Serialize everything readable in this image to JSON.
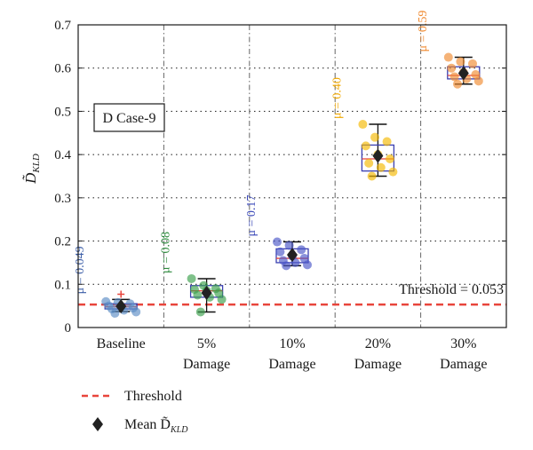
{
  "chart_data": {
    "type": "box",
    "ylabel": "D̃",
    "ylabel_sub": "KLD",
    "ylim": [
      0,
      0.7
    ],
    "yticks": [
      "0",
      "0.1",
      "0.2",
      "0.3",
      "0.4",
      "0.5",
      "0.6",
      "0.7"
    ],
    "categories": [
      {
        "line1": "Baseline",
        "line2": ""
      },
      {
        "line1": "5%",
        "line2": "Damage"
      },
      {
        "line1": "10%",
        "line2": "Damage"
      },
      {
        "line1": "20%",
        "line2": "Damage"
      },
      {
        "line1": "30%",
        "line2": "Damage"
      }
    ],
    "case_label": "D Case-9",
    "threshold": {
      "value": 0.053,
      "label": "Threshold = 0.053",
      "color": "#e8453c"
    },
    "groups": [
      {
        "color": "#5b8cc4",
        "box_color": "#3a3fb0",
        "median_color": "#e8453c",
        "mu_label": "μ = 0.049",
        "mu_color": "#3d5fa8",
        "q1": 0.043,
        "median": 0.048,
        "q3": 0.055,
        "whisker_low": 0.037,
        "whisker_high": 0.065,
        "mean": 0.049,
        "outliers": [
          0.077
        ],
        "points": [
          0.06,
          0.058,
          0.055,
          0.05,
          0.047,
          0.045,
          0.043,
          0.04,
          0.036,
          0.033
        ]
      },
      {
        "color": "#3aa04b",
        "box_color": "#3a3fb0",
        "median_color": "#e8453c",
        "mu_label": "μ = 0.08",
        "mu_color": "#2e8b3e",
        "q1": 0.07,
        "median": 0.085,
        "q3": 0.097,
        "whisker_low": 0.036,
        "whisker_high": 0.113,
        "mean": 0.08,
        "outliers": [],
        "points": [
          0.113,
          0.097,
          0.09,
          0.088,
          0.085,
          0.08,
          0.075,
          0.07,
          0.065,
          0.036
        ]
      },
      {
        "color": "#4a56c8",
        "box_color": "#3a3fb0",
        "median_color": "#e8453c",
        "mu_label": "μ = 0.17",
        "mu_color": "#3a48b8",
        "q1": 0.15,
        "median": 0.16,
        "q3": 0.182,
        "whisker_low": 0.143,
        "whisker_high": 0.198,
        "mean": 0.168,
        "outliers": [],
        "points": [
          0.198,
          0.19,
          0.18,
          0.175,
          0.165,
          0.16,
          0.155,
          0.15,
          0.145,
          0.143
        ]
      },
      {
        "color": "#f5b800",
        "box_color": "#3a3fb0",
        "median_color": "#e8453c",
        "mu_label": "μ = 0.40",
        "mu_color": "#f0a800",
        "q1": 0.362,
        "median": 0.39,
        "q3": 0.422,
        "whisker_low": 0.35,
        "whisker_high": 0.47,
        "mean": 0.397,
        "outliers": [],
        "points": [
          0.47,
          0.44,
          0.43,
          0.42,
          0.4,
          0.39,
          0.38,
          0.37,
          0.36,
          0.35
        ]
      },
      {
        "color": "#f08a30",
        "box_color": "#3a3fb0",
        "median_color": "#e8453c",
        "mu_label": "μ = 0.59",
        "mu_color": "#f08a30",
        "q1": 0.575,
        "median": 0.583,
        "q3": 0.603,
        "whisker_low": 0.563,
        "whisker_high": 0.625,
        "mean": 0.588,
        "outliers": [],
        "points": [
          0.625,
          0.615,
          0.61,
          0.6,
          0.59,
          0.585,
          0.58,
          0.575,
          0.57,
          0.563
        ]
      }
    ],
    "legend": [
      {
        "label": "Threshold",
        "kind": "dashed-line",
        "color": "#e8453c"
      },
      {
        "label": "Mean D̃",
        "sub": "KLD",
        "kind": "diamond",
        "color": "#222222"
      }
    ],
    "grid": true
  }
}
